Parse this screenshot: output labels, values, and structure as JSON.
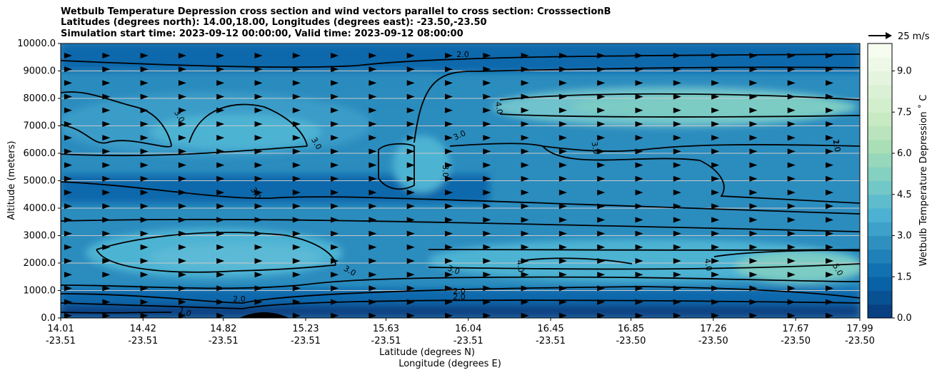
{
  "title_lines": [
    "Wetbulb Temperature Depression cross section and wind vectors parallel to cross section: CrosssectionB",
    "Latitudes (degrees north): 14.00,18.00, Longitudes (degrees east): -23.50,-23.50",
    "Simulation start time: 2023-09-12 00:00:00, Valid time: 2023-09-12 08:00:00"
  ],
  "chart_data": {
    "type": "contourf-cross-section",
    "ylabel": "Altitude (meters)",
    "xlabel_lines": [
      "Latitude (degrees N)",
      "Longitude (degrees E)"
    ],
    "ylim": [
      0,
      10000
    ],
    "yticks": [
      "0.0",
      "1000.0",
      "2000.0",
      "3000.0",
      "4000.0",
      "5000.0",
      "6000.0",
      "7000.0",
      "8000.0",
      "9000.0",
      "10000.0"
    ],
    "xlim": [
      14.01,
      17.99
    ],
    "xticks": [
      {
        "lat": "14.01",
        "lon": "-23.51"
      },
      {
        "lat": "14.42",
        "lon": "-23.51"
      },
      {
        "lat": "14.82",
        "lon": "-23.51"
      },
      {
        "lat": "15.23",
        "lon": "-23.51"
      },
      {
        "lat": "15.63",
        "lon": "-23.51"
      },
      {
        "lat": "16.04",
        "lon": "-23.51"
      },
      {
        "lat": "16.45",
        "lon": "-23.51"
      },
      {
        "lat": "16.85",
        "lon": "-23.50"
      },
      {
        "lat": "17.26",
        "lon": "-23.50"
      },
      {
        "lat": "17.67",
        "lon": "-23.50"
      },
      {
        "lat": "17.99",
        "lon": "-23.50"
      }
    ],
    "grid": "horizontal",
    "colorbar": {
      "label": "Wetbulb Temperature Depression ˚ C",
      "ticks": [
        "0.0",
        "1.5",
        "3.0",
        "4.5",
        "6.0",
        "7.5",
        "9.0"
      ],
      "range": [
        0,
        10
      ],
      "levels": 20,
      "colormap": "GnBu_r",
      "colors_low_to_high": [
        "#084081",
        "#0868ac",
        "#2b8cbe",
        "#4eb3d3",
        "#7bccc4",
        "#a8ddb5",
        "#ccebc5",
        "#e0f3db",
        "#f7fcf0"
      ]
    },
    "contour_labels": [
      "2.0",
      "3.0",
      "3.0",
      "3.0",
      "3.0",
      "3.0",
      "3.0",
      "3.0",
      "3.0",
      "2.0",
      "2.0",
      "2.0",
      "1.0",
      "1.0",
      "4.0",
      "4.0",
      "4.0",
      "5.0",
      "2.0"
    ],
    "quiver_key": {
      "label": "25 m/s",
      "speed": 25
    },
    "wind_direction": "parallel, toward increasing latitude"
  }
}
